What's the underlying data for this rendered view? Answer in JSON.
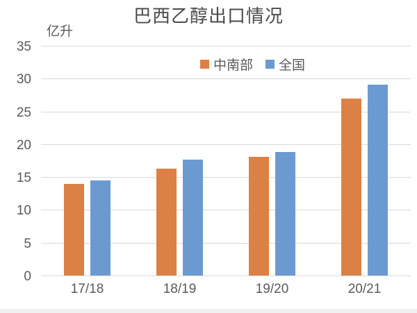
{
  "chart_data": {
    "type": "bar",
    "title": "巴西乙醇出口情况",
    "ylabel": "亿升",
    "xlabel": "",
    "categories": [
      "17/18",
      "18/19",
      "19/20",
      "20/21"
    ],
    "series": [
      {
        "name": "中南部",
        "color": "#DC8145",
        "values": [
          14.0,
          16.3,
          18.1,
          27.0
        ]
      },
      {
        "name": "全国",
        "color": "#6B9AD1",
        "values": [
          14.5,
          17.7,
          18.8,
          29.1
        ]
      }
    ],
    "ylim": [
      0,
      35
    ],
    "ytick_interval": 5,
    "ytick_labels": [
      "35",
      "30",
      "25",
      "20",
      "15",
      "10",
      "5",
      "0"
    ],
    "grid": "horizontal",
    "legend_position": "top-center"
  },
  "colors": {
    "grid": "#D9D9D9",
    "axis_text": "#595959",
    "title_text": "#4A4A4A",
    "background": "#FFFFFF",
    "bottom_strip": "#F1F1F1"
  }
}
